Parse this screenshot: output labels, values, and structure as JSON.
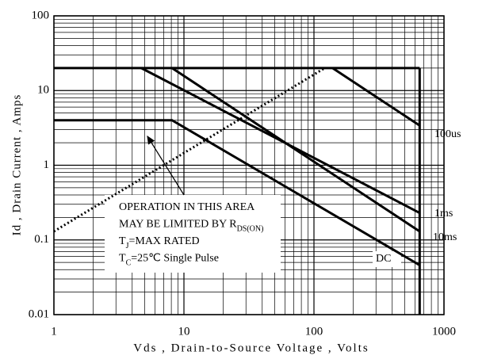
{
  "chart_data": {
    "type": "line",
    "xlabel": "Vds , Drain-to-Source Voltage , Volts",
    "ylabel": "Id , Drain Current , Amps",
    "xscale": "log",
    "yscale": "log",
    "grid": true,
    "xlim": [
      1,
      1000
    ],
    "ylim": [
      0.01,
      100
    ],
    "xticks": [
      1,
      10,
      100,
      1000
    ],
    "yticks": [
      0.01,
      0.1,
      1,
      10,
      100
    ],
    "series": [
      {
        "color": "#000000",
        "x": [
          1,
          650
        ],
        "values": [
          20,
          20
        ]
      },
      {
        "color": "#000000",
        "x": [
          650,
          650
        ],
        "values": [
          20,
          0.01
        ]
      },
      {
        "name": "DC",
        "color": "#000000",
        "x": [
          1,
          8.1,
          650
        ],
        "values": [
          4,
          4,
          0.046
        ]
      },
      {
        "name": "10ms",
        "color": "#000000",
        "x": [
          8.1,
          650
        ],
        "values": [
          20,
          0.13
        ]
      },
      {
        "name": "1ms",
        "color": "#000000",
        "x": [
          4.7,
          650
        ],
        "values": [
          20,
          0.23
        ]
      },
      {
        "name": "100us",
        "color": "#000000",
        "x": [
          139,
          650
        ],
        "values": [
          20,
          3.4
        ]
      },
      {
        "color": "#000000",
        "style": "dotted",
        "x": [
          1,
          121
        ],
        "values": [
          0.13,
          20
        ]
      }
    ],
    "note": [
      {
        "text": "OPERATION IN THIS AREA"
      },
      {
        "text": "MAY BE LIMITED BY R",
        "sub": "DS(ON)"
      },
      {
        "text": "T",
        "sub": "J",
        "after": "=MAX RATED"
      },
      {
        "text": "T",
        "sub": "C",
        "after": "=25℃  Single Pulse"
      }
    ]
  }
}
